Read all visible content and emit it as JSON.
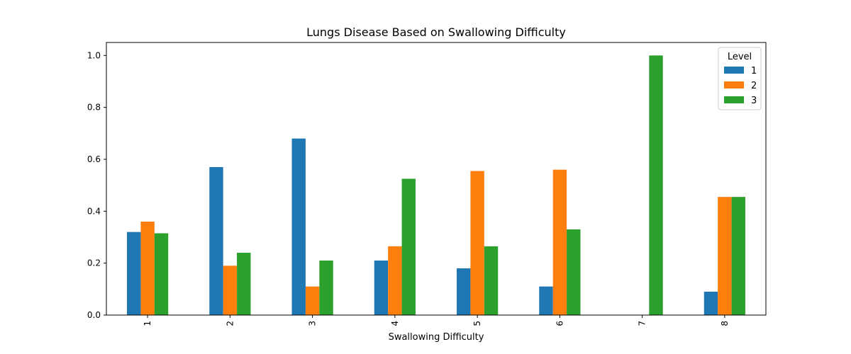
{
  "chart_data": {
    "type": "bar",
    "title": "Lungs Disease Based on Swallowing Difficulty",
    "xlabel": "Swallowing Difficulty",
    "ylabel": "",
    "categories": [
      "1",
      "2",
      "3",
      "4",
      "5",
      "6",
      "7",
      "8"
    ],
    "ylim": [
      0,
      1.05
    ],
    "yticks": [
      0.0,
      0.2,
      0.4,
      0.6,
      0.8,
      1.0
    ],
    "ytick_labels": [
      "0.0",
      "0.2",
      "0.4",
      "0.6",
      "0.8",
      "1.0"
    ],
    "legend": {
      "title": "Level",
      "position": "top-right"
    },
    "grid": false,
    "series": [
      {
        "name": "1",
        "color": "#1f77b4",
        "values": [
          0.32,
          0.57,
          0.68,
          0.21,
          0.18,
          0.11,
          0.0,
          0.09
        ]
      },
      {
        "name": "2",
        "color": "#ff7f0e",
        "values": [
          0.36,
          0.19,
          0.11,
          0.265,
          0.555,
          0.56,
          0.0,
          0.455
        ]
      },
      {
        "name": "3",
        "color": "#2ca02c",
        "values": [
          0.315,
          0.24,
          0.21,
          0.525,
          0.265,
          0.33,
          1.0,
          0.455
        ]
      }
    ]
  }
}
